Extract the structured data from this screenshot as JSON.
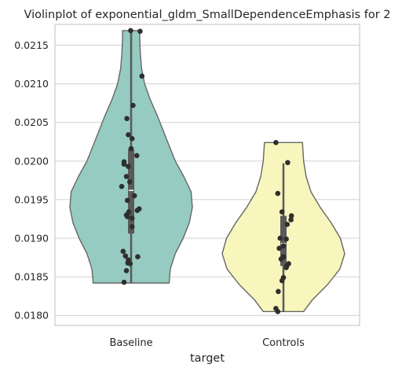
{
  "chart_data": {
    "type": "violin",
    "title": "Violinplot of exponential_gldm_SmallDependenceEmphasis for 2",
    "xlabel": "target",
    "ylabel": "",
    "categories": [
      "Baseline",
      "Controls"
    ],
    "ylim": [
      0.01787,
      0.02177
    ],
    "yticks": [
      0.018,
      0.0185,
      0.019,
      0.0195,
      0.02,
      0.0205,
      0.021,
      0.0215
    ],
    "ytick_labels": [
      "0.0180",
      "0.0185",
      "0.0190",
      "0.0195",
      "0.0200",
      "0.0205",
      "0.0210",
      "0.0215"
    ],
    "grid": "horizontal",
    "colors": {
      "Baseline": "#96cbc1",
      "Controls": "#f8f6bc",
      "points": "#2f2f2f",
      "box": "#5a5a5a",
      "outline": "#666666",
      "grid": "#d0d0d0"
    },
    "violins": [
      {
        "category": "Baseline",
        "min": 0.01842,
        "max": 0.02169,
        "q1": 0.01906,
        "median": 0.01962,
        "q3": 0.02015,
        "whisker_low": 0.01842,
        "whisker_high": 0.02169,
        "density": [
          [
            0.01842,
            0.62
          ],
          [
            0.0186,
            0.64
          ],
          [
            0.0188,
            0.72
          ],
          [
            0.019,
            0.85
          ],
          [
            0.0192,
            0.95
          ],
          [
            0.0194,
            1.0
          ],
          [
            0.0196,
            0.98
          ],
          [
            0.0198,
            0.86
          ],
          [
            0.02,
            0.72
          ],
          [
            0.0202,
            0.62
          ],
          [
            0.0204,
            0.52
          ],
          [
            0.0206,
            0.42
          ],
          [
            0.0208,
            0.31
          ],
          [
            0.021,
            0.22
          ],
          [
            0.0212,
            0.17
          ],
          [
            0.0214,
            0.15
          ],
          [
            0.0216,
            0.14
          ],
          [
            0.02169,
            0.14
          ]
        ],
        "points": [
          [
            -0.01,
            0.02169
          ],
          [
            0.19,
            0.02168
          ],
          [
            0.23,
            0.0211
          ],
          [
            0.04,
            0.02072
          ],
          [
            -0.09,
            0.02055
          ],
          [
            -0.06,
            0.02034
          ],
          [
            0.02,
            0.02029
          ],
          [
            0.12,
            0.02007
          ],
          [
            0.0,
            0.02016
          ],
          [
            -0.15,
            0.01999
          ],
          [
            -0.15,
            0.01996
          ],
          [
            -0.06,
            0.01993
          ],
          [
            -0.1,
            0.0198
          ],
          [
            -0.03,
            0.01973
          ],
          [
            -0.2,
            0.01967
          ],
          [
            0.07,
            0.01955
          ],
          [
            -0.08,
            0.01949
          ],
          [
            0.17,
            0.01938
          ],
          [
            0.13,
            0.01936
          ],
          [
            -0.05,
            0.01934
          ],
          [
            -0.1,
            0.0193
          ],
          [
            -0.08,
            0.01928
          ],
          [
            0.02,
            0.01926
          ],
          [
            0.02,
            0.01915
          ],
          [
            -0.17,
            0.01883
          ],
          [
            -0.12,
            0.01877
          ],
          [
            0.14,
            0.01876
          ],
          [
            -0.06,
            0.01872
          ],
          [
            -0.07,
            0.01868
          ],
          [
            -0.02,
            0.01867
          ],
          [
            -0.1,
            0.01858
          ],
          [
            -0.15,
            0.01843
          ]
        ]
      },
      {
        "category": "Controls",
        "min": 0.01805,
        "max": 0.02024,
        "q1": 0.01864,
        "median": 0.01893,
        "q3": 0.01929,
        "whisker_low": 0.01805,
        "whisker_high": 0.01997,
        "density": [
          [
            0.01805,
            0.33
          ],
          [
            0.0182,
            0.47
          ],
          [
            0.0184,
            0.72
          ],
          [
            0.0186,
            0.92
          ],
          [
            0.0188,
            1.0
          ],
          [
            0.019,
            0.93
          ],
          [
            0.0192,
            0.78
          ],
          [
            0.0194,
            0.6
          ],
          [
            0.0196,
            0.45
          ],
          [
            0.0198,
            0.37
          ],
          [
            0.02,
            0.33
          ],
          [
            0.02024,
            0.31
          ]
        ],
        "points": [
          [
            -0.16,
            0.02024
          ],
          [
            0.09,
            0.01998
          ],
          [
            -0.12,
            0.01958
          ],
          [
            -0.03,
            0.01934
          ],
          [
            0.17,
            0.01929
          ],
          [
            0.16,
            0.01924
          ],
          [
            0.08,
            0.01918
          ],
          [
            -0.07,
            0.019
          ],
          [
            0.06,
            0.01899
          ],
          [
            0.0,
            0.0189
          ],
          [
            -0.09,
            0.01887
          ],
          [
            0.0,
            0.01876
          ],
          [
            -0.05,
            0.01873
          ],
          [
            0.11,
            0.01867
          ],
          [
            0.07,
            0.01864
          ],
          [
            0.06,
            0.01862
          ],
          [
            0.0,
            0.01849
          ],
          [
            -0.03,
            0.01845
          ],
          [
            -0.11,
            0.01831
          ],
          [
            -0.16,
            0.01809
          ],
          [
            -0.12,
            0.01805
          ]
        ]
      }
    ]
  }
}
